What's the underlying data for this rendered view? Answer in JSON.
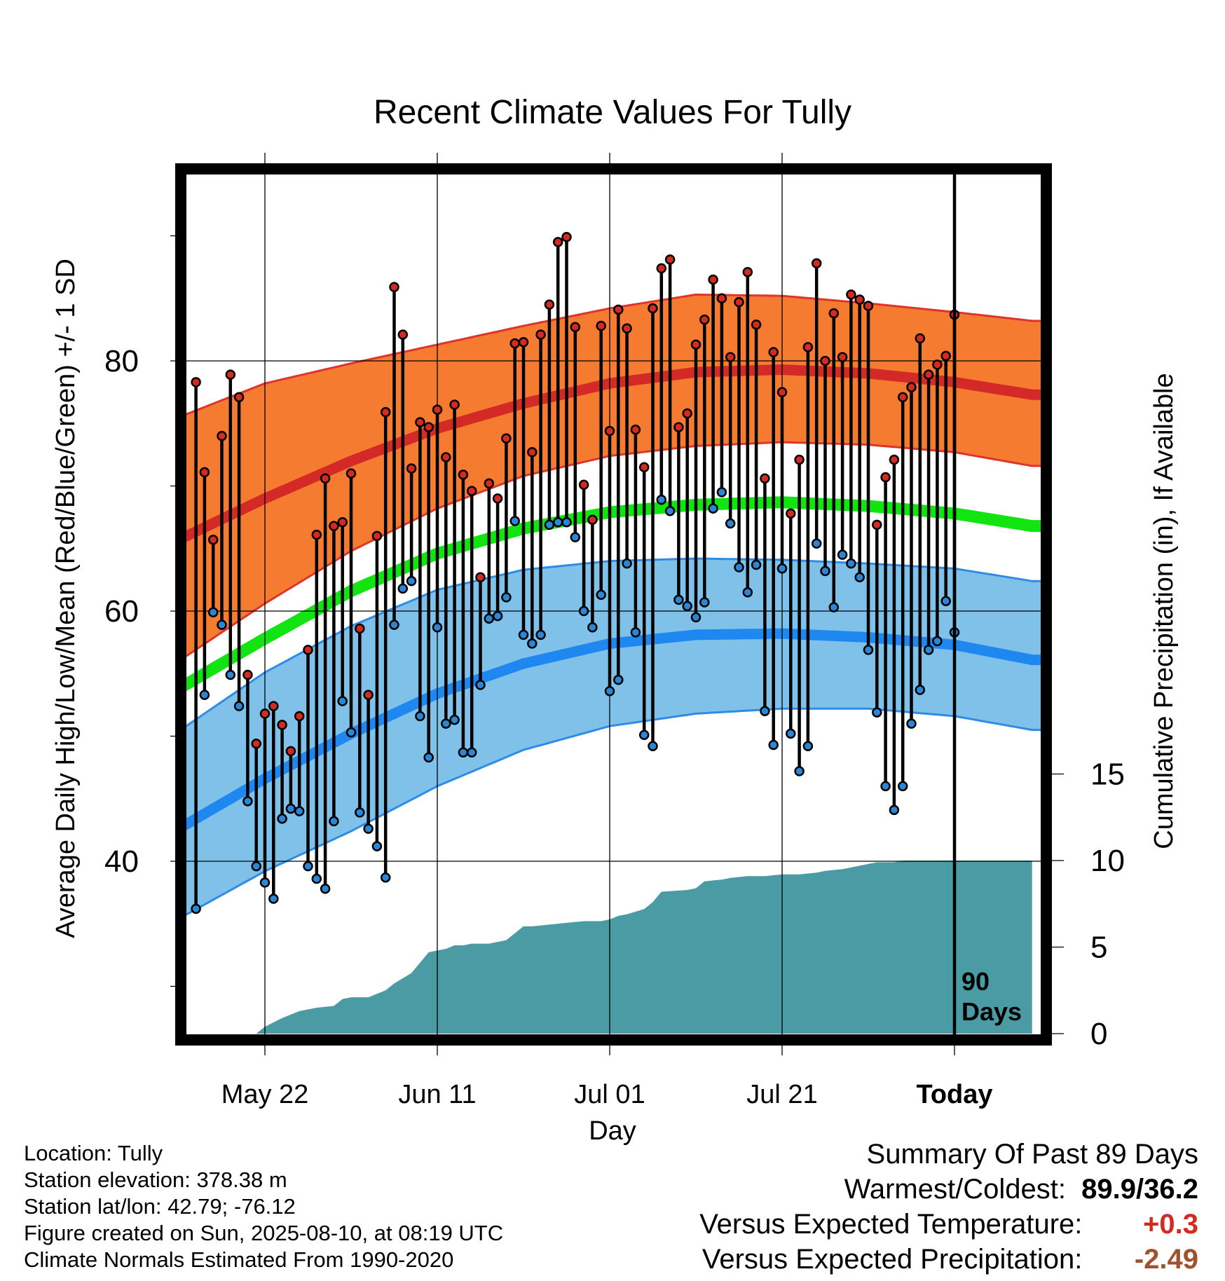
{
  "colors": {
    "high_band": "#F47B30",
    "high_band_edge": "#E0332B",
    "high_mean": "#D32A28",
    "low_band": "#7FC1E8",
    "low_band_edge": "#2E8BE6",
    "low_mean": "#1E88F0",
    "mean_line": "#11E411",
    "precip": "#4A9BA3",
    "high_point": "#D42A20",
    "low_point": "#2B86D6"
  },
  "info": {
    "location": "Location: Tully",
    "elevation": "Station elevation: 378.38 m",
    "latlon": "Station lat/lon: 42.79; -76.12",
    "created": "Figure created on Sun, 2025-08-10, at 08:19 UTC",
    "normals": "Climate Normals Estimated From 1990-2020"
  },
  "summary": {
    "title": "Summary Of Past 89 Days",
    "warmest_label": "Warmest/Coldest:",
    "warmest_value": "89.9/36.2",
    "temp_label": "Versus Expected Temperature:",
    "temp_value": "+0.3",
    "temp_color": "#D42A20",
    "precip_label": "Versus Expected Precipitation:",
    "precip_value": "-2.49",
    "precip_color": "#A0522D"
  },
  "chart_data": {
    "type": "line",
    "title": "Recent Climate Values For Tully",
    "xlabel": "Day",
    "ylabel": "Average Daily High/Low/Mean (Red/Blue/Green) +/- 1 SD",
    "ylabel_right": "Cumulative Precipitation (in), If Available",
    "x_range": [
      -90,
      9
    ],
    "ylim": [
      26.5,
      95.5
    ],
    "y_ticks": [
      40,
      60,
      80
    ],
    "y_minor_ticks": [
      30,
      50,
      70,
      90
    ],
    "y2_ticks": [
      0,
      5,
      10,
      15
    ],
    "y2_range": [
      0,
      15
    ],
    "x_ticks": [
      {
        "day": -80,
        "label": "May 22"
      },
      {
        "day": -60,
        "label": "Jun 11"
      },
      {
        "day": -40,
        "label": "Jul 01"
      },
      {
        "day": -20,
        "label": "Jul 21"
      },
      {
        "day": 0,
        "label": "Today"
      }
    ],
    "today_day": 0,
    "window_label_1": "90",
    "window_label_2": "Days",
    "normals": {
      "days": [
        -90,
        -80,
        -70,
        -60,
        -50,
        -40,
        -30,
        -20,
        -10,
        0,
        9
      ],
      "high_mean": [
        65.7,
        69.0,
        72.0,
        74.6,
        76.6,
        78.2,
        79.1,
        79.3,
        79.0,
        78.3,
        77.3
      ],
      "high_upper": [
        75.5,
        78.2,
        79.8,
        81.3,
        82.8,
        84.2,
        85.3,
        85.2,
        84.6,
        83.9,
        83.2
      ],
      "high_lower": [
        56.0,
        60.6,
        64.8,
        68.2,
        70.8,
        72.4,
        73.2,
        73.5,
        73.3,
        72.7,
        71.6
      ],
      "mean": [
        53.8,
        57.8,
        61.6,
        64.6,
        66.6,
        67.9,
        68.5,
        68.7,
        68.4,
        67.8,
        66.8
      ],
      "low_upper": [
        50.4,
        55.1,
        58.8,
        61.7,
        63.3,
        64.0,
        64.2,
        64.1,
        63.8,
        63.4,
        62.4
      ],
      "low_mean": [
        42.6,
        46.6,
        50.2,
        53.4,
        55.8,
        57.4,
        58.1,
        58.2,
        57.9,
        57.3,
        56.1
      ],
      "low_lower": [
        35.4,
        39.2,
        42.4,
        46.0,
        48.9,
        50.8,
        51.8,
        52.2,
        52.2,
        51.6,
        50.5
      ]
    },
    "daily_high": [
      78.3,
      71.1,
      65.7,
      74.0,
      78.9,
      77.1,
      54.9,
      49.4,
      51.8,
      52.4,
      50.9,
      48.8,
      51.6,
      56.9,
      66.1,
      70.6,
      66.8,
      67.1,
      71.0,
      58.6,
      53.3,
      66.0,
      75.9,
      85.9,
      82.1,
      71.4,
      75.1,
      74.7,
      76.1,
      72.3,
      76.5,
      70.9,
      69.6,
      62.7,
      70.2,
      69.0,
      73.8,
      81.4,
      81.5,
      72.7,
      82.1,
      84.5,
      89.5,
      89.9,
      82.7,
      70.1,
      67.3,
      82.8,
      74.4,
      84.1,
      82.6,
      74.5,
      71.5,
      84.2,
      87.4,
      88.1,
      74.7,
      75.8,
      81.3,
      83.3,
      86.5,
      85.0,
      80.3,
      84.7,
      87.1,
      82.9,
      70.6,
      80.7,
      77.5,
      67.8,
      72.1,
      81.1,
      87.8,
      80.0,
      83.8,
      80.3,
      85.3,
      84.9,
      84.4,
      66.9,
      70.7,
      72.1,
      77.1,
      77.9,
      81.8,
      78.9,
      79.7,
      80.4,
      83.7
    ],
    "daily_low": [
      36.2,
      53.3,
      59.9,
      58.9,
      54.9,
      52.4,
      44.8,
      39.6,
      38.3,
      37.0,
      43.4,
      44.2,
      44.0,
      39.6,
      38.6,
      37.8,
      43.2,
      52.8,
      50.3,
      43.9,
      42.6,
      41.2,
      38.7,
      58.9,
      61.8,
      62.4,
      51.6,
      48.3,
      58.7,
      51.0,
      51.3,
      48.7,
      48.7,
      54.1,
      59.4,
      59.6,
      61.1,
      67.2,
      58.1,
      57.4,
      58.1,
      66.9,
      67.1,
      67.1,
      65.9,
      60.0,
      58.7,
      61.3,
      53.6,
      54.5,
      63.8,
      58.3,
      50.1,
      49.2,
      68.9,
      68.0,
      60.9,
      60.4,
      59.5,
      60.7,
      68.2,
      69.5,
      67.0,
      63.5,
      61.5,
      63.7,
      52.0,
      49.3,
      63.4,
      50.2,
      47.2,
      49.2,
      65.4,
      63.2,
      60.3,
      64.5,
      63.8,
      62.7,
      56.9,
      51.9,
      46.0,
      44.1,
      46.0,
      51.0,
      53.7,
      56.9,
      57.6,
      60.8,
      58.3
    ],
    "precip_days": [
      -81,
      -80,
      -78,
      -76,
      -74,
      -72,
      -71,
      -70,
      -68,
      -66,
      -65,
      -63,
      -62,
      -61,
      -60,
      -59,
      -58,
      -57,
      -56,
      -54,
      -52,
      -50,
      -49,
      -47,
      -45,
      -43,
      -41,
      -40,
      -39,
      -38,
      -36,
      -35,
      -34,
      -31,
      -30,
      -29,
      -27,
      -26,
      -24,
      -22,
      -20,
      -18,
      -16,
      -15,
      -13,
      -12,
      -10,
      -9,
      -7,
      -6,
      -4,
      -2,
      0,
      9
    ],
    "precip_cum": [
      0.0,
      0.4,
      0.9,
      1.3,
      1.5,
      1.6,
      2.0,
      2.1,
      2.1,
      2.5,
      2.9,
      3.5,
      4.1,
      4.7,
      4.8,
      4.9,
      5.1,
      5.1,
      5.2,
      5.2,
      5.4,
      6.2,
      6.2,
      6.3,
      6.4,
      6.5,
      6.5,
      6.6,
      6.8,
      6.9,
      7.2,
      7.6,
      8.2,
      8.3,
      8.4,
      8.8,
      8.9,
      9.0,
      9.1,
      9.1,
      9.2,
      9.2,
      9.3,
      9.4,
      9.5,
      9.6,
      9.8,
      9.9,
      9.9,
      10.0,
      10.0,
      10.0,
      10.0,
      10.0
    ]
  }
}
